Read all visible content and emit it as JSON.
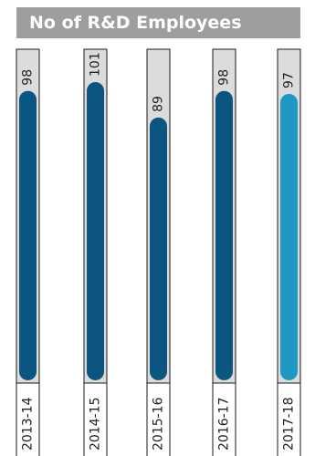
{
  "title": "No of R&D Employees",
  "colors": {
    "accent_dark": "#0b5680",
    "accent_light": "#1f97c3",
    "track": "#dcdcdc",
    "title_bg": "#9e9e9e"
  },
  "chart_data": {
    "type": "bar",
    "orientation": "vertical",
    "categories": [
      "2013-14",
      "2014-15",
      "2015-16",
      "2016-17",
      "2017-18"
    ],
    "values": [
      98,
      101,
      89,
      98,
      97
    ],
    "highlight_index": 4,
    "title": "No of R&D Employees",
    "xlabel": "",
    "ylabel": "",
    "ylim": [
      0,
      101
    ],
    "grid": false,
    "legend": "none"
  }
}
